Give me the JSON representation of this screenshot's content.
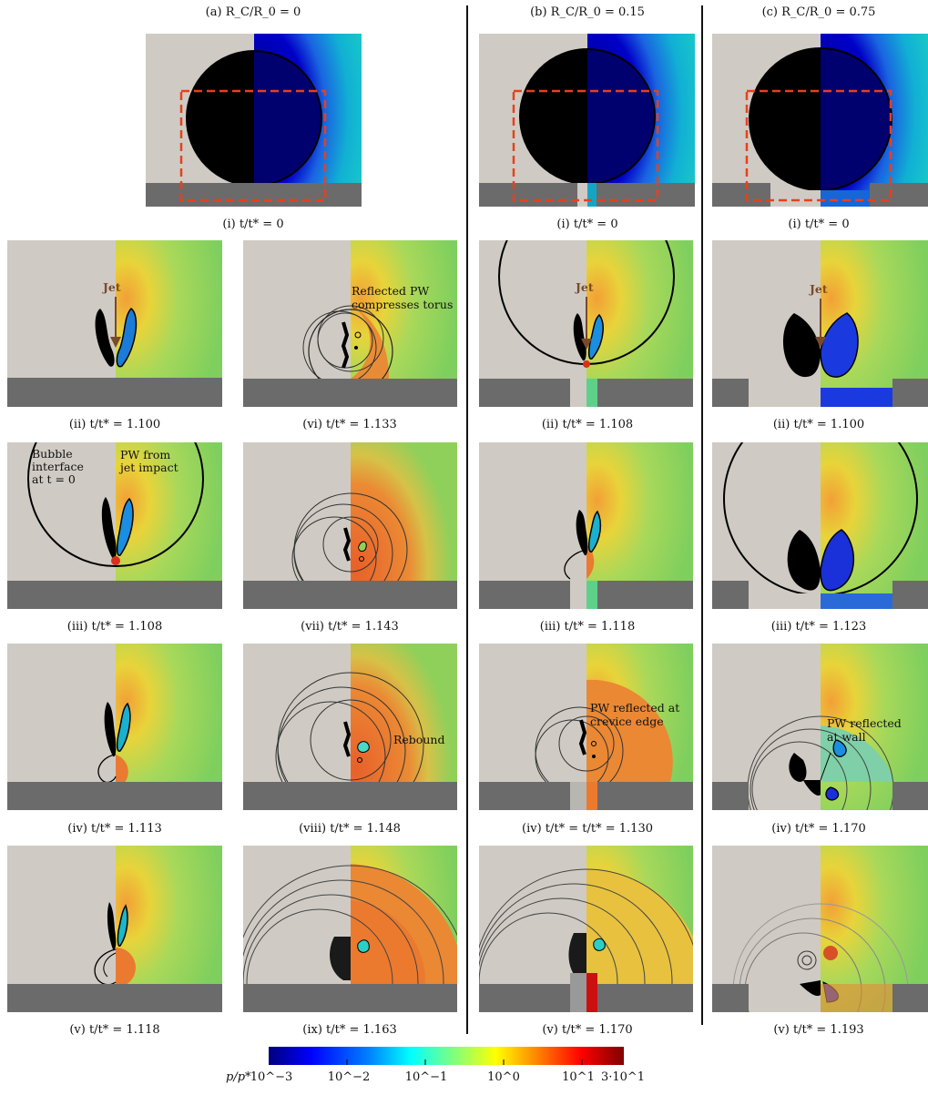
{
  "columns": [
    {
      "id": "a",
      "title": "(a) R_C/R_0 = 0"
    },
    {
      "id": "b",
      "title": "(b) R_C/R_0 = 0.15"
    },
    {
      "id": "c",
      "title": "(c) R_C/R_0 = 0.75"
    }
  ],
  "captions": {
    "a_i": "(i) t/t* = 0",
    "a_ii": "(ii) t/t* = 1.100",
    "a_iii": "(iii) t/t* = 1.108",
    "a_iv": "(iv) t/t* = 1.113",
    "a_v": "(v) t/t* = 1.118",
    "a_vi": "(vi) t/t* = 1.133",
    "a_vii": "(vii) t/t* = 1.143",
    "a_viii": "(viii) t/t* = 1.148",
    "a_ix": "(ix) t/t* = 1.163",
    "b_i": "(i) t/t* = 0",
    "b_ii": "(ii) t/t* = 1.108",
    "b_iii": "(iii) t/t* = 1.118",
    "b_iv": "(iv) t/t* = t/t* = 1.130",
    "b_v": "(v) t/t* = 1.170",
    "c_i": "(i) t/t* = 0",
    "c_ii": "(ii) t/t* = 1.100",
    "c_iii": "(iii) t/t* = 1.123",
    "c_iv": "(iv) t/t* = 1.170",
    "c_v": "(v) t/t* = 1.193"
  },
  "annotations": {
    "jet": "Jet",
    "reflected_pw_1": "Reflected PW",
    "reflected_pw_2": "compresses torus",
    "bubble_1": "Bubble",
    "bubble_2": "interface",
    "bubble_3": "at t = 0",
    "pw_jet_1": "PW from",
    "pw_jet_2": "jet impact",
    "rebound": "Rebound",
    "crevice_1": "PW reflected at",
    "crevice_2": "crevice edge",
    "wall_1": "PW reflected",
    "wall_2": "at wall"
  },
  "colorbar": {
    "label": "p/p*",
    "ticks": [
      "10^−3",
      "10^−2",
      "10^−1",
      "10^0",
      "10^1",
      "3·10^1"
    ],
    "tick_values": [
      0.001,
      0.01,
      0.1,
      1,
      10,
      30
    ],
    "colors": [
      "#00007f",
      "#0000ff",
      "#007fff",
      "#00ffff",
      "#7fff7f",
      "#ffff00",
      "#ff7f00",
      "#ff0000",
      "#7f0000"
    ]
  },
  "style": {
    "background_left": "#cfcbc4",
    "wall": "#6b6b6b",
    "dashed": "#e8401c",
    "field_mid": "#8fd05a",
    "field_high": "#e8742a"
  }
}
